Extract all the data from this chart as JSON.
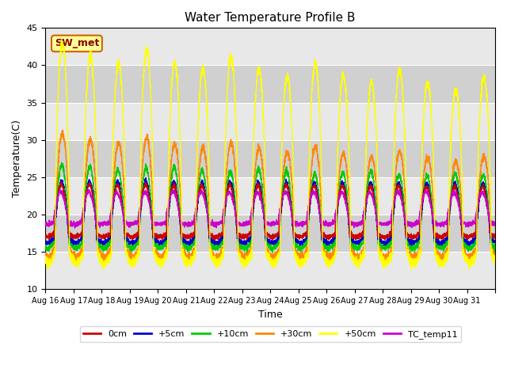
{
  "title": "Water Temperature Profile B",
  "xlabel": "Time",
  "ylabel": "Temperature(C)",
  "ylim": [
    10,
    45
  ],
  "yticks": [
    10,
    15,
    20,
    25,
    30,
    35,
    40,
    45
  ],
  "x_labels": [
    "Aug 16",
    "Aug 17",
    "Aug 18",
    "Aug 19",
    "Aug 20",
    "Aug 21",
    "Aug 22",
    "Aug 23",
    "Aug 24",
    "Aug 25",
    "Aug 26",
    "Aug 27",
    "Aug 28",
    "Aug 29",
    "Aug 30",
    "Aug 31"
  ],
  "colors": {
    "0cm": "#cc0000",
    "+5cm": "#0000cc",
    "+10cm": "#00cc00",
    "+30cm": "#ff8800",
    "+50cm": "#ffff00",
    "TC_temp11": "#cc00cc"
  },
  "bg_color": "#e0e0e0",
  "band_light": "#e8e8e8",
  "band_dark": "#d0d0d0",
  "annotation_text": "SW_met",
  "annotation_bg": "#ffff99",
  "annotation_border": "#cc6600",
  "annotation_text_color": "#880000",
  "n_days": 16,
  "n_pts": 288
}
